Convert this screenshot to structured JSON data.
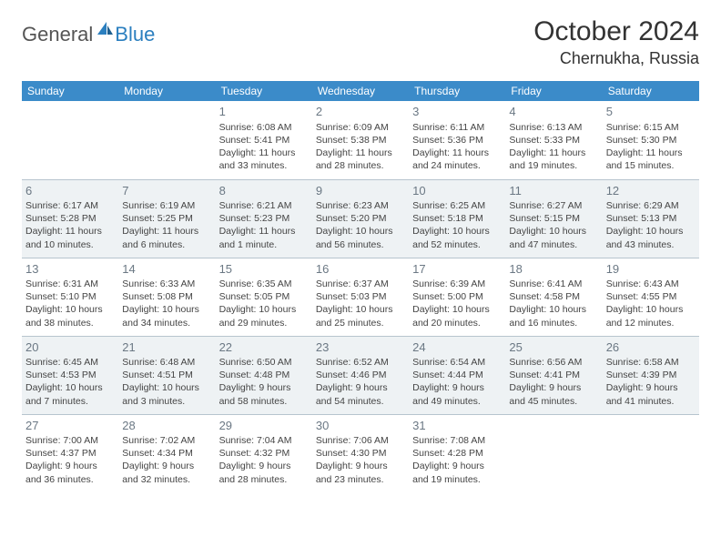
{
  "brand": {
    "part1": "General",
    "part2": "Blue"
  },
  "title": "October 2024",
  "location": "Chernukha, Russia",
  "colors": {
    "header_bg": "#3b8bc9",
    "alt_row_bg": "#eef2f4",
    "border": "#b7c4ce",
    "daynum": "#6b7884",
    "brand_blue": "#2b7fbf"
  },
  "daysOfWeek": [
    "Sunday",
    "Monday",
    "Tuesday",
    "Wednesday",
    "Thursday",
    "Friday",
    "Saturday"
  ],
  "weeks": [
    {
      "alt": false,
      "days": [
        null,
        null,
        {
          "n": "1",
          "sr": "6:08 AM",
          "ss": "5:41 PM",
          "dl": "11 hours and 33 minutes."
        },
        {
          "n": "2",
          "sr": "6:09 AM",
          "ss": "5:38 PM",
          "dl": "11 hours and 28 minutes."
        },
        {
          "n": "3",
          "sr": "6:11 AM",
          "ss": "5:36 PM",
          "dl": "11 hours and 24 minutes."
        },
        {
          "n": "4",
          "sr": "6:13 AM",
          "ss": "5:33 PM",
          "dl": "11 hours and 19 minutes."
        },
        {
          "n": "5",
          "sr": "6:15 AM",
          "ss": "5:30 PM",
          "dl": "11 hours and 15 minutes."
        }
      ]
    },
    {
      "alt": true,
      "days": [
        {
          "n": "6",
          "sr": "6:17 AM",
          "ss": "5:28 PM",
          "dl": "11 hours and 10 minutes."
        },
        {
          "n": "7",
          "sr": "6:19 AM",
          "ss": "5:25 PM",
          "dl": "11 hours and 6 minutes."
        },
        {
          "n": "8",
          "sr": "6:21 AM",
          "ss": "5:23 PM",
          "dl": "11 hours and 1 minute."
        },
        {
          "n": "9",
          "sr": "6:23 AM",
          "ss": "5:20 PM",
          "dl": "10 hours and 56 minutes."
        },
        {
          "n": "10",
          "sr": "6:25 AM",
          "ss": "5:18 PM",
          "dl": "10 hours and 52 minutes."
        },
        {
          "n": "11",
          "sr": "6:27 AM",
          "ss": "5:15 PM",
          "dl": "10 hours and 47 minutes."
        },
        {
          "n": "12",
          "sr": "6:29 AM",
          "ss": "5:13 PM",
          "dl": "10 hours and 43 minutes."
        }
      ]
    },
    {
      "alt": false,
      "days": [
        {
          "n": "13",
          "sr": "6:31 AM",
          "ss": "5:10 PM",
          "dl": "10 hours and 38 minutes."
        },
        {
          "n": "14",
          "sr": "6:33 AM",
          "ss": "5:08 PM",
          "dl": "10 hours and 34 minutes."
        },
        {
          "n": "15",
          "sr": "6:35 AM",
          "ss": "5:05 PM",
          "dl": "10 hours and 29 minutes."
        },
        {
          "n": "16",
          "sr": "6:37 AM",
          "ss": "5:03 PM",
          "dl": "10 hours and 25 minutes."
        },
        {
          "n": "17",
          "sr": "6:39 AM",
          "ss": "5:00 PM",
          "dl": "10 hours and 20 minutes."
        },
        {
          "n": "18",
          "sr": "6:41 AM",
          "ss": "4:58 PM",
          "dl": "10 hours and 16 minutes."
        },
        {
          "n": "19",
          "sr": "6:43 AM",
          "ss": "4:55 PM",
          "dl": "10 hours and 12 minutes."
        }
      ]
    },
    {
      "alt": true,
      "days": [
        {
          "n": "20",
          "sr": "6:45 AM",
          "ss": "4:53 PM",
          "dl": "10 hours and 7 minutes."
        },
        {
          "n": "21",
          "sr": "6:48 AM",
          "ss": "4:51 PM",
          "dl": "10 hours and 3 minutes."
        },
        {
          "n": "22",
          "sr": "6:50 AM",
          "ss": "4:48 PM",
          "dl": "9 hours and 58 minutes."
        },
        {
          "n": "23",
          "sr": "6:52 AM",
          "ss": "4:46 PM",
          "dl": "9 hours and 54 minutes."
        },
        {
          "n": "24",
          "sr": "6:54 AM",
          "ss": "4:44 PM",
          "dl": "9 hours and 49 minutes."
        },
        {
          "n": "25",
          "sr": "6:56 AM",
          "ss": "4:41 PM",
          "dl": "9 hours and 45 minutes."
        },
        {
          "n": "26",
          "sr": "6:58 AM",
          "ss": "4:39 PM",
          "dl": "9 hours and 41 minutes."
        }
      ]
    },
    {
      "alt": false,
      "days": [
        {
          "n": "27",
          "sr": "7:00 AM",
          "ss": "4:37 PM",
          "dl": "9 hours and 36 minutes."
        },
        {
          "n": "28",
          "sr": "7:02 AM",
          "ss": "4:34 PM",
          "dl": "9 hours and 32 minutes."
        },
        {
          "n": "29",
          "sr": "7:04 AM",
          "ss": "4:32 PM",
          "dl": "9 hours and 28 minutes."
        },
        {
          "n": "30",
          "sr": "7:06 AM",
          "ss": "4:30 PM",
          "dl": "9 hours and 23 minutes."
        },
        {
          "n": "31",
          "sr": "7:08 AM",
          "ss": "4:28 PM",
          "dl": "9 hours and 19 minutes."
        },
        null,
        null
      ]
    }
  ],
  "labels": {
    "sunrise": "Sunrise:",
    "sunset": "Sunset:",
    "daylight": "Daylight:"
  }
}
